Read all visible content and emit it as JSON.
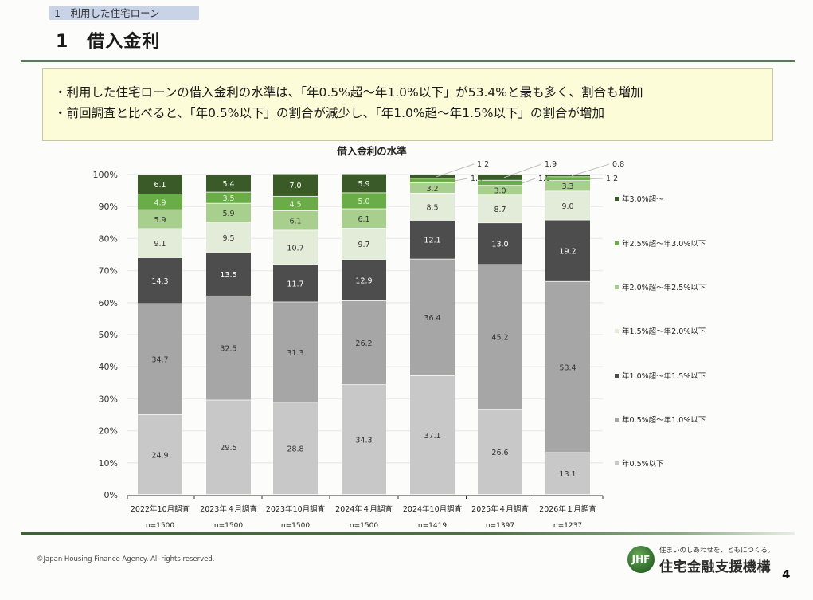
{
  "header": {
    "section_tag": "1　利用した住宅ローン",
    "page_title": "1　借入金利"
  },
  "summary": [
    "・利用した住宅ローンの借入金利の水準は、「年0.5%超～年1.0%以下」が53.4%と最も多く、割合も増加",
    "・前回調査と比べると、「年0.5%以下」の割合が減少し、「年1.0%超～年1.5%以下」の割合が増加"
  ],
  "chart_data": {
    "type": "bar",
    "stacked": true,
    "percent_stacked": true,
    "title": "借入金利の水準",
    "xlabel": "",
    "ylabel": "",
    "ylim": [
      0,
      100
    ],
    "yticks": [
      "0%",
      "10%",
      "20%",
      "30%",
      "40%",
      "50%",
      "60%",
      "70%",
      "80%",
      "90%",
      "100%"
    ],
    "grid": true,
    "legend_position": "right",
    "categories": [
      "2022年10月調査",
      "2023年４月調査",
      "2023年10月調査",
      "2024年４月調査",
      "2024年10月調査",
      "2025年４月調査",
      "2026年１月調査"
    ],
    "sample_sizes": [
      "n=1500",
      "n=1500",
      "n=1500",
      "n=1500",
      "n=1419",
      "n=1397",
      "n=1237"
    ],
    "series": [
      {
        "name": "年0.5%以下",
        "color": "#c8c8c8",
        "label_color": "#333333",
        "values": [
          24.9,
          29.5,
          28.8,
          34.3,
          37.1,
          26.6,
          13.1
        ]
      },
      {
        "name": "年0.5%超～年1.0%以下",
        "color": "#a6a6a6",
        "label_color": "#333333",
        "values": [
          34.7,
          32.5,
          31.3,
          26.2,
          36.4,
          45.2,
          53.4
        ]
      },
      {
        "name": "年1.0%超～年1.5%以下",
        "color": "#4d4d4d",
        "label_color": "#ffffff",
        "values": [
          14.3,
          13.5,
          11.7,
          12.9,
          12.1,
          13.0,
          19.2
        ]
      },
      {
        "name": "年1.5%超～年2.0%以下",
        "color": "#e3ecd8",
        "label_color": "#333333",
        "values": [
          9.1,
          9.5,
          10.7,
          9.7,
          8.5,
          8.7,
          9.0
        ]
      },
      {
        "name": "年2.0%超～年2.5%以下",
        "color": "#a9cf8e",
        "label_color": "#333333",
        "values": [
          5.9,
          5.9,
          6.1,
          6.1,
          3.2,
          3.0,
          3.3
        ]
      },
      {
        "name": "年2.5%超～年3.0%以下",
        "color": "#6aac48",
        "label_color": "#e8f4dc",
        "values": [
          4.9,
          3.5,
          4.5,
          5.0,
          1.4,
          1.6,
          1.2
        ]
      },
      {
        "name": "年3.0%超～",
        "color": "#3a5a28",
        "label_color": "#ffffff",
        "values": [
          6.1,
          5.4,
          7.0,
          5.9,
          1.2,
          1.9,
          0.8
        ]
      }
    ],
    "callout_threshold": 2.0
  },
  "footer": {
    "copyright": "©Japan Housing Finance Agency. All rights reserved.",
    "logo_mark": "JHF",
    "logo_tagline": "住まいのしあわせを、ともにつくる。",
    "logo_name": "住宅金融支援機構",
    "page_number": "4"
  }
}
